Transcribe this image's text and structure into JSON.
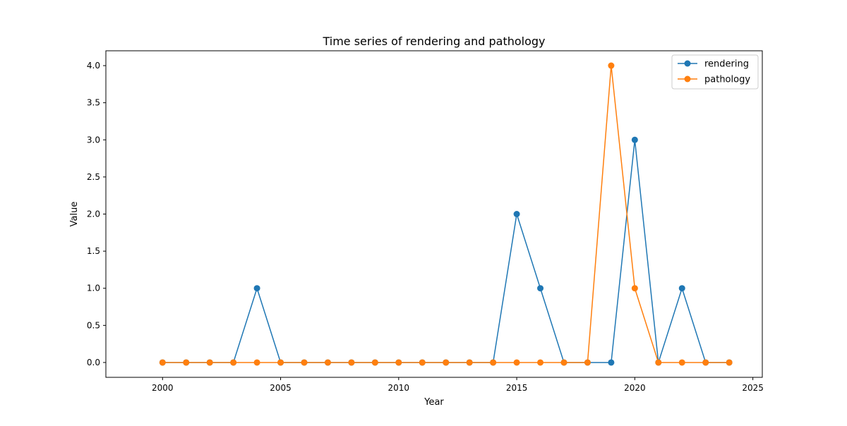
{
  "chart_data": {
    "type": "line",
    "title": "Time series of rendering and pathology",
    "xlabel": "Year",
    "ylabel": "Value",
    "x": [
      2000,
      2001,
      2002,
      2003,
      2004,
      2005,
      2006,
      2007,
      2008,
      2009,
      2010,
      2011,
      2012,
      2013,
      2014,
      2015,
      2016,
      2017,
      2018,
      2019,
      2020,
      2021,
      2022,
      2023,
      2024
    ],
    "series": [
      {
        "name": "rendering",
        "color": "#1f77b4",
        "values": [
          0,
          0,
          0,
          0,
          1,
          0,
          0,
          0,
          0,
          0,
          0,
          0,
          0,
          0,
          0,
          2,
          1,
          0,
          0,
          0,
          3,
          0,
          1,
          0,
          0
        ]
      },
      {
        "name": "pathology",
        "color": "#ff7f0e",
        "values": [
          0,
          0,
          0,
          0,
          0,
          0,
          0,
          0,
          0,
          0,
          0,
          0,
          0,
          0,
          0,
          0,
          0,
          0,
          0,
          4,
          1,
          0,
          0,
          0,
          0
        ]
      }
    ],
    "xlim": [
      1997.6,
      2025.4
    ],
    "ylim": [
      -0.2,
      4.2
    ],
    "x_ticks": [
      2000,
      2005,
      2010,
      2015,
      2020,
      2025
    ],
    "x_tick_labels": [
      "2000",
      "2005",
      "2010",
      "2015",
      "2020",
      "2025"
    ],
    "y_ticks": [
      0.0,
      0.5,
      1.0,
      1.5,
      2.0,
      2.5,
      3.0,
      3.5,
      4.0
    ],
    "y_tick_labels": [
      "0.0",
      "0.5",
      "1.0",
      "1.5",
      "2.0",
      "2.5",
      "3.0",
      "3.5",
      "4.0"
    ],
    "grid": false,
    "legend_position": "top-right"
  }
}
